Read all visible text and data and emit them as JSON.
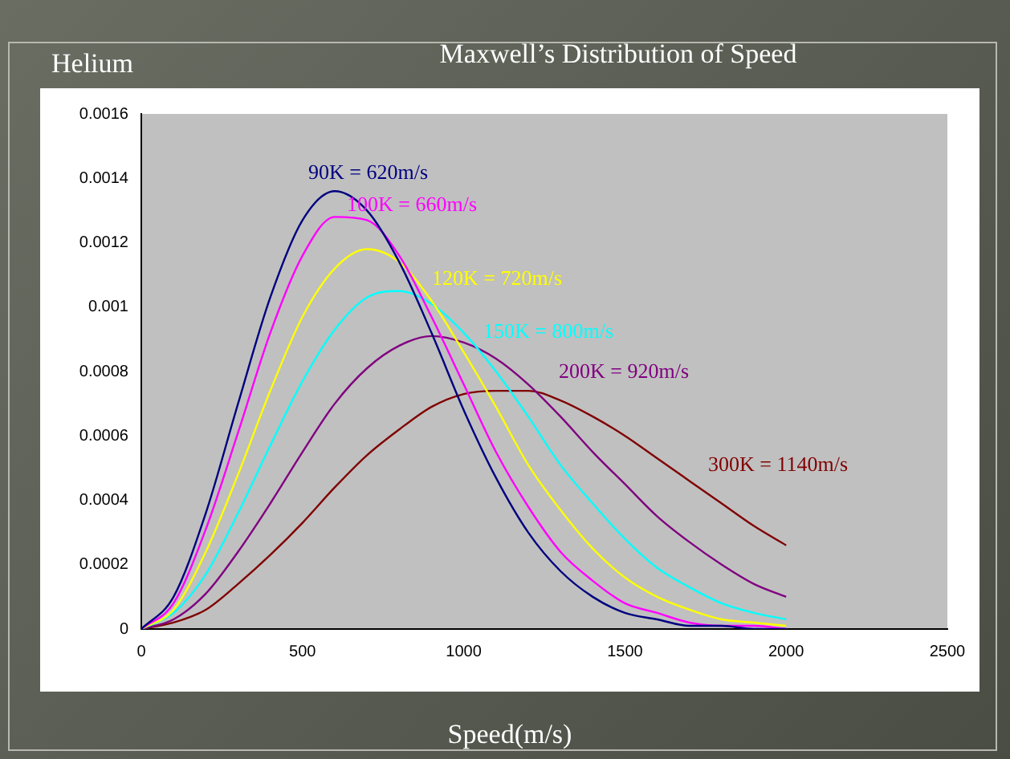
{
  "chart_data": {
    "type": "line",
    "title": "Maxwell’s Distribution of Speed",
    "subtitle": "Helium",
    "xlabel": "Speed(m/s)",
    "x": [
      0,
      100,
      200,
      300,
      400,
      500,
      600,
      700,
      800,
      900,
      1000,
      1100,
      1200,
      1300,
      1400,
      1500,
      1600,
      1700,
      1800,
      1900,
      2000
    ],
    "series": [
      {
        "name": "90K = 620m/s",
        "color": "#000080",
        "values": [
          0,
          0.0001,
          0.00036,
          0.0007,
          0.00103,
          0.00127,
          0.00136,
          0.0013,
          0.00114,
          0.00092,
          0.00068,
          0.00047,
          0.0003,
          0.00018,
          0.0001,
          5e-05,
          3e-05,
          1e-05,
          1e-05,
          0,
          0
        ]
      },
      {
        "name": "100K = 660m/s",
        "color": "#ff00ff",
        "values": [
          0,
          8e-05,
          0.00031,
          0.00061,
          0.00092,
          0.00116,
          0.00128,
          0.00127,
          0.00116,
          0.00097,
          0.00076,
          0.00055,
          0.00038,
          0.00024,
          0.00015,
          8e-05,
          5e-05,
          2e-05,
          1e-05,
          1e-05,
          0
        ]
      },
      {
        "name": "120K = 720m/s",
        "color": "#ffff00",
        "values": [
          0,
          6e-05,
          0.00024,
          0.00048,
          0.00074,
          0.00097,
          0.00112,
          0.00118,
          0.00114,
          0.00102,
          0.00086,
          0.00069,
          0.00051,
          0.00037,
          0.00025,
          0.00016,
          0.0001,
          6e-05,
          3e-05,
          2e-05,
          1e-05
        ]
      },
      {
        "name": "150K = 800m/s",
        "color": "#00ffff",
        "values": [
          0,
          5e-05,
          0.00017,
          0.00036,
          0.00057,
          0.00077,
          0.00093,
          0.00103,
          0.00105,
          0.00101,
          0.00092,
          0.0008,
          0.00066,
          0.00051,
          0.00039,
          0.00028,
          0.00019,
          0.00013,
          8e-05,
          5e-05,
          3e-05
        ]
      },
      {
        "name": "200K = 920m/s",
        "color": "#800080",
        "values": [
          0,
          3e-05,
          0.00011,
          0.00024,
          0.00039,
          0.00055,
          0.0007,
          0.00081,
          0.00088,
          0.00091,
          0.00089,
          0.00084,
          0.00076,
          0.00066,
          0.00055,
          0.00045,
          0.00035,
          0.00027,
          0.0002,
          0.00014,
          0.0001
        ]
      },
      {
        "name": "300K = 1140m/s",
        "color": "#800000",
        "values": [
          0,
          2e-05,
          6e-05,
          0.00014,
          0.00023,
          0.00033,
          0.00044,
          0.00054,
          0.00062,
          0.00069,
          0.00073,
          0.00074,
          0.00074,
          0.00071,
          0.00066,
          0.0006,
          0.00053,
          0.00046,
          0.00039,
          0.00032,
          0.00026
        ]
      }
    ],
    "xlim": [
      0,
      2500
    ],
    "xticks": [
      0,
      500,
      1000,
      1500,
      2000,
      2500
    ],
    "ylim": [
      0,
      0.0016
    ],
    "yticks": [
      0,
      0.0002,
      0.0004,
      0.0006,
      0.0008,
      0.001,
      0.0012,
      0.0014,
      0.0016
    ]
  }
}
